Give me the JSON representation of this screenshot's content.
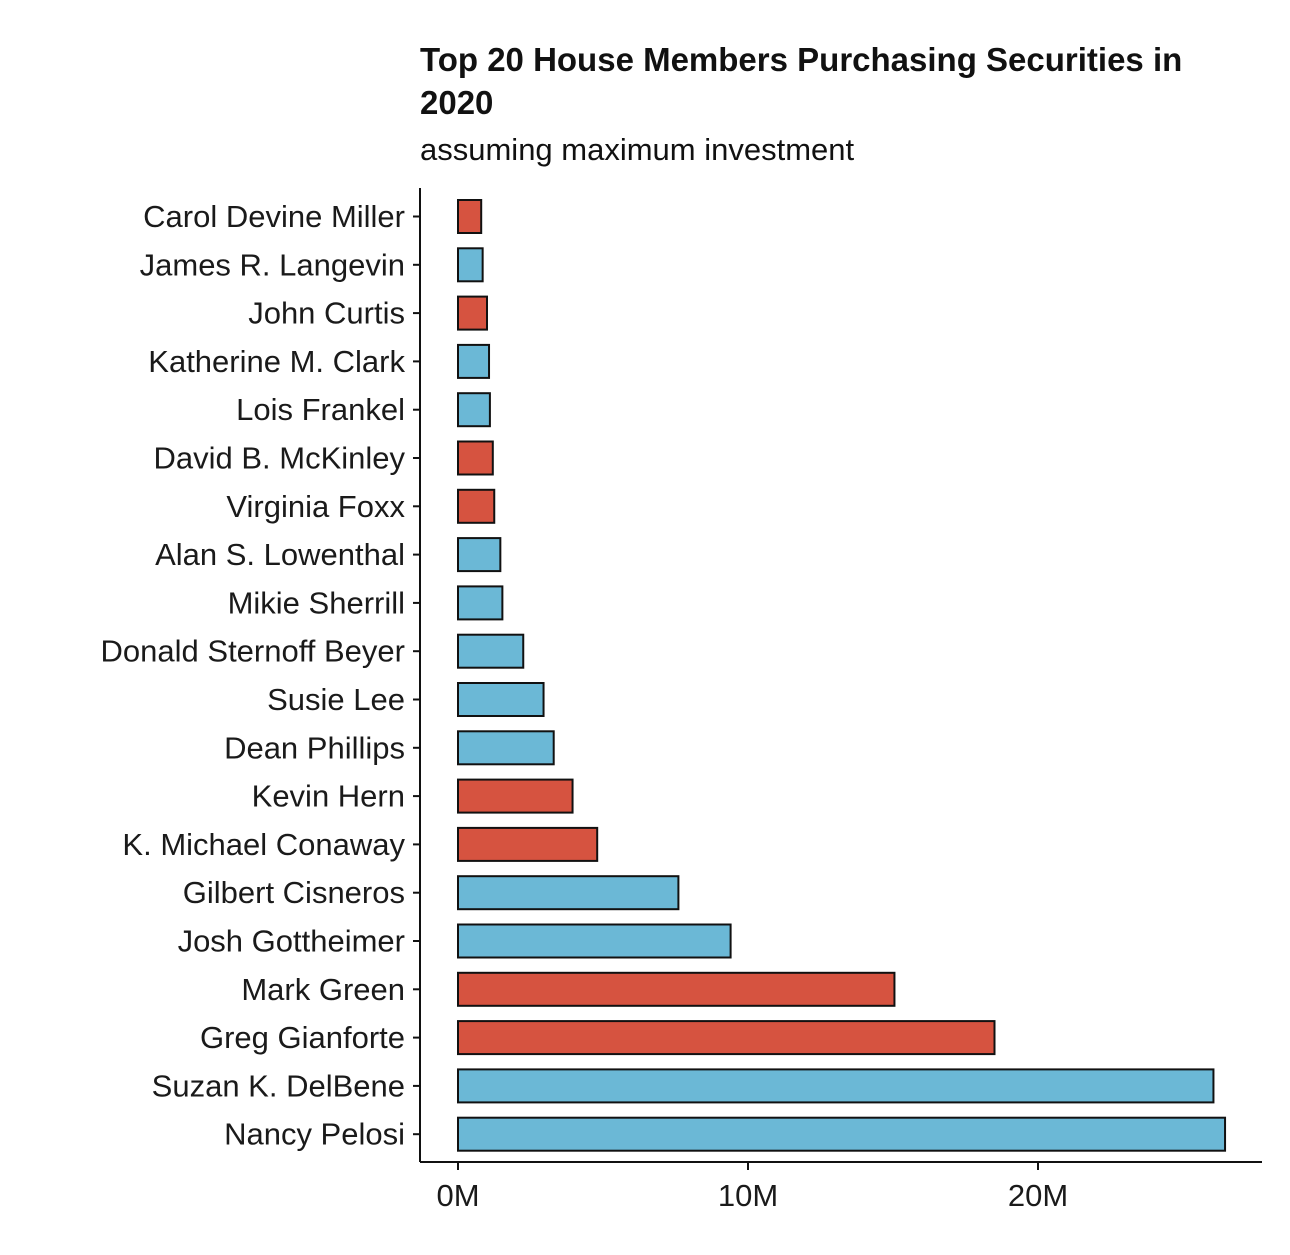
{
  "chart_data": {
    "type": "bar",
    "orientation": "horizontal",
    "title": "Top 20 House Members Purchasing Securities in 2020",
    "subtitle": "assuming maximum investment",
    "xlabel": "",
    "ylabel": "",
    "xlim": [
      0,
      27000000
    ],
    "x_ticks": [
      {
        "value": 0,
        "label": "0M"
      },
      {
        "value": 10000000,
        "label": "10M"
      },
      {
        "value": 20000000,
        "label": "20M"
      }
    ],
    "grid": false,
    "legend": "none",
    "colors": {
      "red": "#d65340",
      "blue": "#6bb8d6",
      "outline": "#111111"
    },
    "bars": [
      {
        "name": "Carol Devine Miller",
        "value": 800000,
        "color": "red"
      },
      {
        "name": "James R. Langevin",
        "value": 850000,
        "color": "blue"
      },
      {
        "name": "John Curtis",
        "value": 1000000,
        "color": "red"
      },
      {
        "name": "Katherine M. Clark",
        "value": 1070000,
        "color": "blue"
      },
      {
        "name": "Lois Frankel",
        "value": 1100000,
        "color": "blue"
      },
      {
        "name": "David B. McKinley",
        "value": 1200000,
        "color": "red"
      },
      {
        "name": "Virginia Foxx",
        "value": 1250000,
        "color": "red"
      },
      {
        "name": "Alan S. Lowenthal",
        "value": 1460000,
        "color": "blue"
      },
      {
        "name": "Mikie Sherrill",
        "value": 1530000,
        "color": "blue"
      },
      {
        "name": "Donald Sternoff Beyer",
        "value": 2250000,
        "color": "blue"
      },
      {
        "name": "Susie Lee",
        "value": 2950000,
        "color": "blue"
      },
      {
        "name": "Dean Phillips",
        "value": 3300000,
        "color": "blue"
      },
      {
        "name": "Kevin Hern",
        "value": 3950000,
        "color": "red"
      },
      {
        "name": "K. Michael Conaway",
        "value": 4800000,
        "color": "red"
      },
      {
        "name": "Gilbert Cisneros",
        "value": 7600000,
        "color": "blue"
      },
      {
        "name": "Josh Gottheimer",
        "value": 9400000,
        "color": "blue"
      },
      {
        "name": "Mark Green",
        "value": 15050000,
        "color": "red"
      },
      {
        "name": "Greg Gianforte",
        "value": 18500000,
        "color": "red"
      },
      {
        "name": "Suzan K. DelBene",
        "value": 26050000,
        "color": "blue"
      },
      {
        "name": "Nancy Pelosi",
        "value": 26450000,
        "color": "blue"
      }
    ]
  }
}
